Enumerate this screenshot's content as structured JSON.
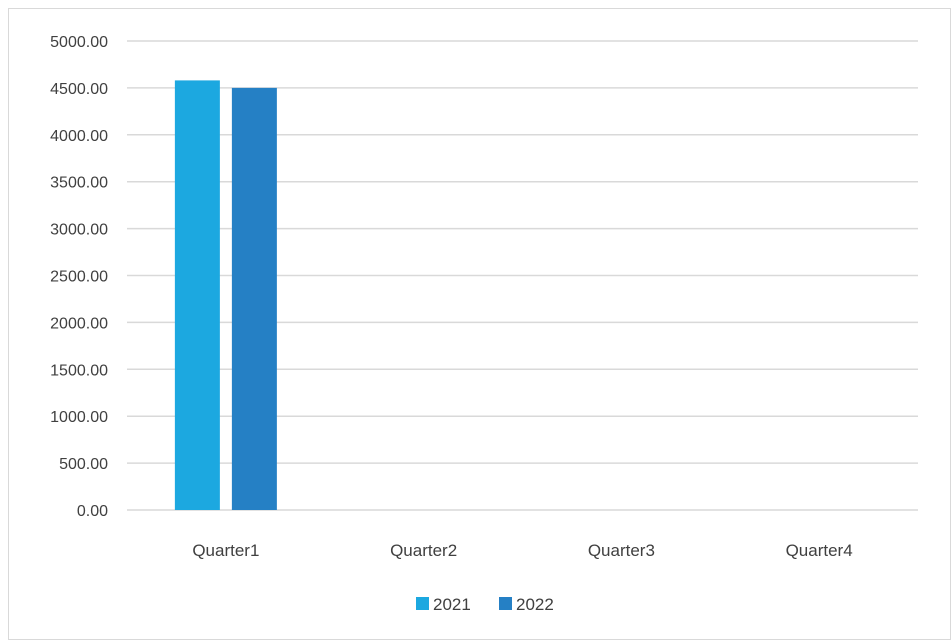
{
  "chart_data": {
    "type": "bar",
    "title": "",
    "xlabel": "",
    "ylabel": "",
    "categories": [
      "Quarter1",
      "Quarter2",
      "Quarter3",
      "Quarter4"
    ],
    "series": [
      {
        "name": "2021",
        "color": "#1CA8E0",
        "values": [
          4580,
          0,
          0,
          0
        ]
      },
      {
        "name": "2022",
        "color": "#2580C5",
        "values": [
          4500,
          0,
          0,
          0
        ]
      }
    ],
    "ylim": [
      0,
      5000
    ],
    "y_ticks": [
      "0.00",
      "500.00",
      "1000.00",
      "1500.00",
      "2000.00",
      "2500.00",
      "3000.00",
      "3500.00",
      "4000.00",
      "4500.00",
      "5000.00"
    ],
    "grid": true,
    "legend_position": "bottom"
  }
}
